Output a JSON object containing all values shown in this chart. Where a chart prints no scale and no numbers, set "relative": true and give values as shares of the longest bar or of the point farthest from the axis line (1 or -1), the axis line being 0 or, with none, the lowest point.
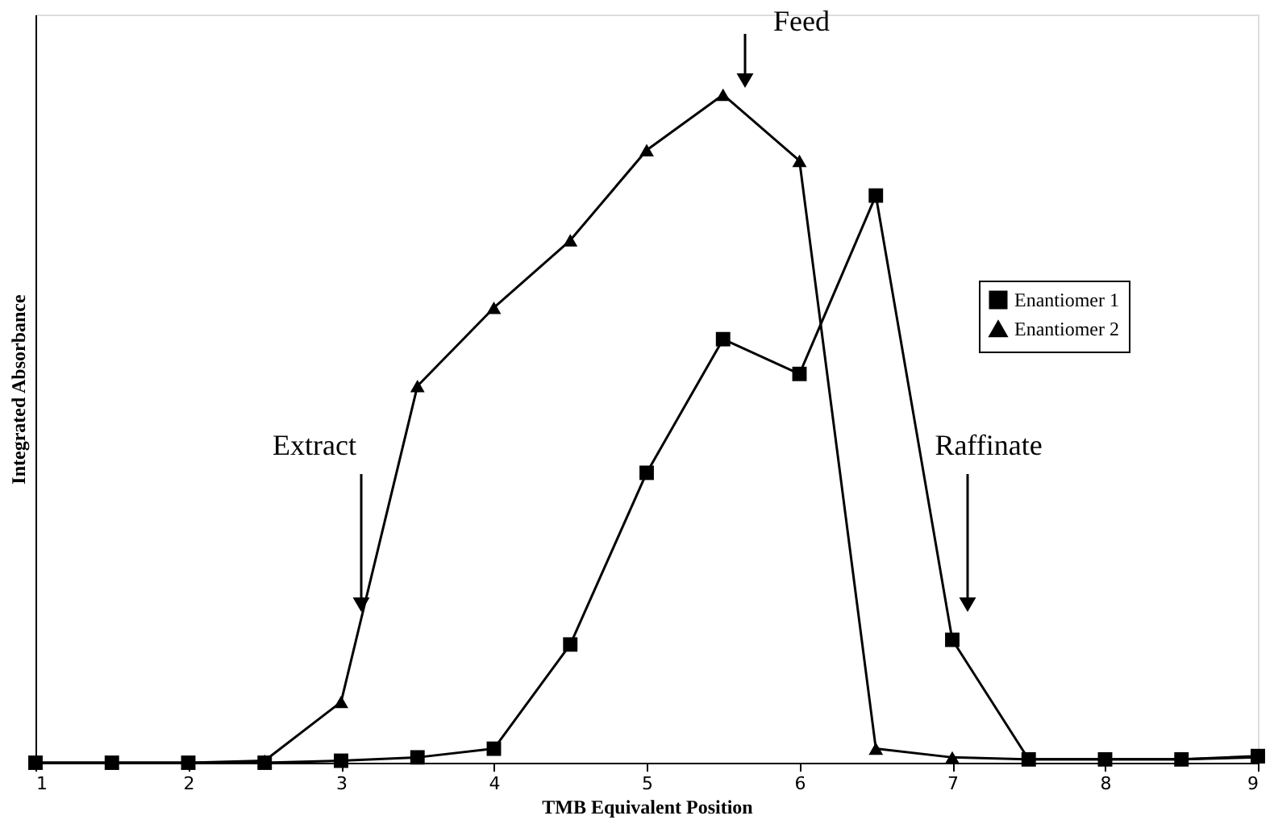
{
  "chart_data": {
    "type": "line",
    "relative": true,
    "xlabel": "TMB Equivalent Position",
    "ylabel": "Integrated Absorbance",
    "xlim": [
      1,
      9
    ],
    "xticks": [
      {
        "value": 1,
        "label": "1"
      },
      {
        "value": 2,
        "label": "2"
      },
      {
        "value": 3,
        "label": "3"
      },
      {
        "value": 4,
        "label": "4"
      },
      {
        "value": 5,
        "label": "5"
      },
      {
        "value": 6,
        "label": "6"
      },
      {
        "value": 7,
        "label": "7"
      },
      {
        "value": 8,
        "label": "8"
      },
      {
        "value": 9,
        "label": "9"
      }
    ],
    "tick_labels": "x",
    "grid": false,
    "legend": "right",
    "line_style": "solid",
    "x": [
      1,
      1.5,
      2,
      2.5,
      3,
      3.5,
      4,
      4.5,
      5,
      5.5,
      6,
      6.5,
      7,
      7.5,
      8,
      8.5,
      9
    ],
    "series": [
      {
        "name": "Enantiomer 1",
        "color": "#000000",
        "marker": "square",
        "values": [
          0,
          0,
          0,
          0,
          0.003,
          0.008,
          0.021,
          0.177,
          0.434,
          0.634,
          0.582,
          0.849,
          0.184,
          0.005,
          0.005,
          0.005,
          0.01
        ]
      },
      {
        "name": "Enantiomer 2",
        "color": "#000000",
        "marker": "triangle",
        "values": [
          0,
          0,
          0,
          0.003,
          0.091,
          0.564,
          0.681,
          0.782,
          0.917,
          1,
          0.901,
          0.021,
          0.008,
          0.005,
          0.005,
          0.005,
          0.008
        ]
      }
    ],
    "annotations": [
      "Feed",
      "Extract",
      "Raffinate"
    ]
  }
}
